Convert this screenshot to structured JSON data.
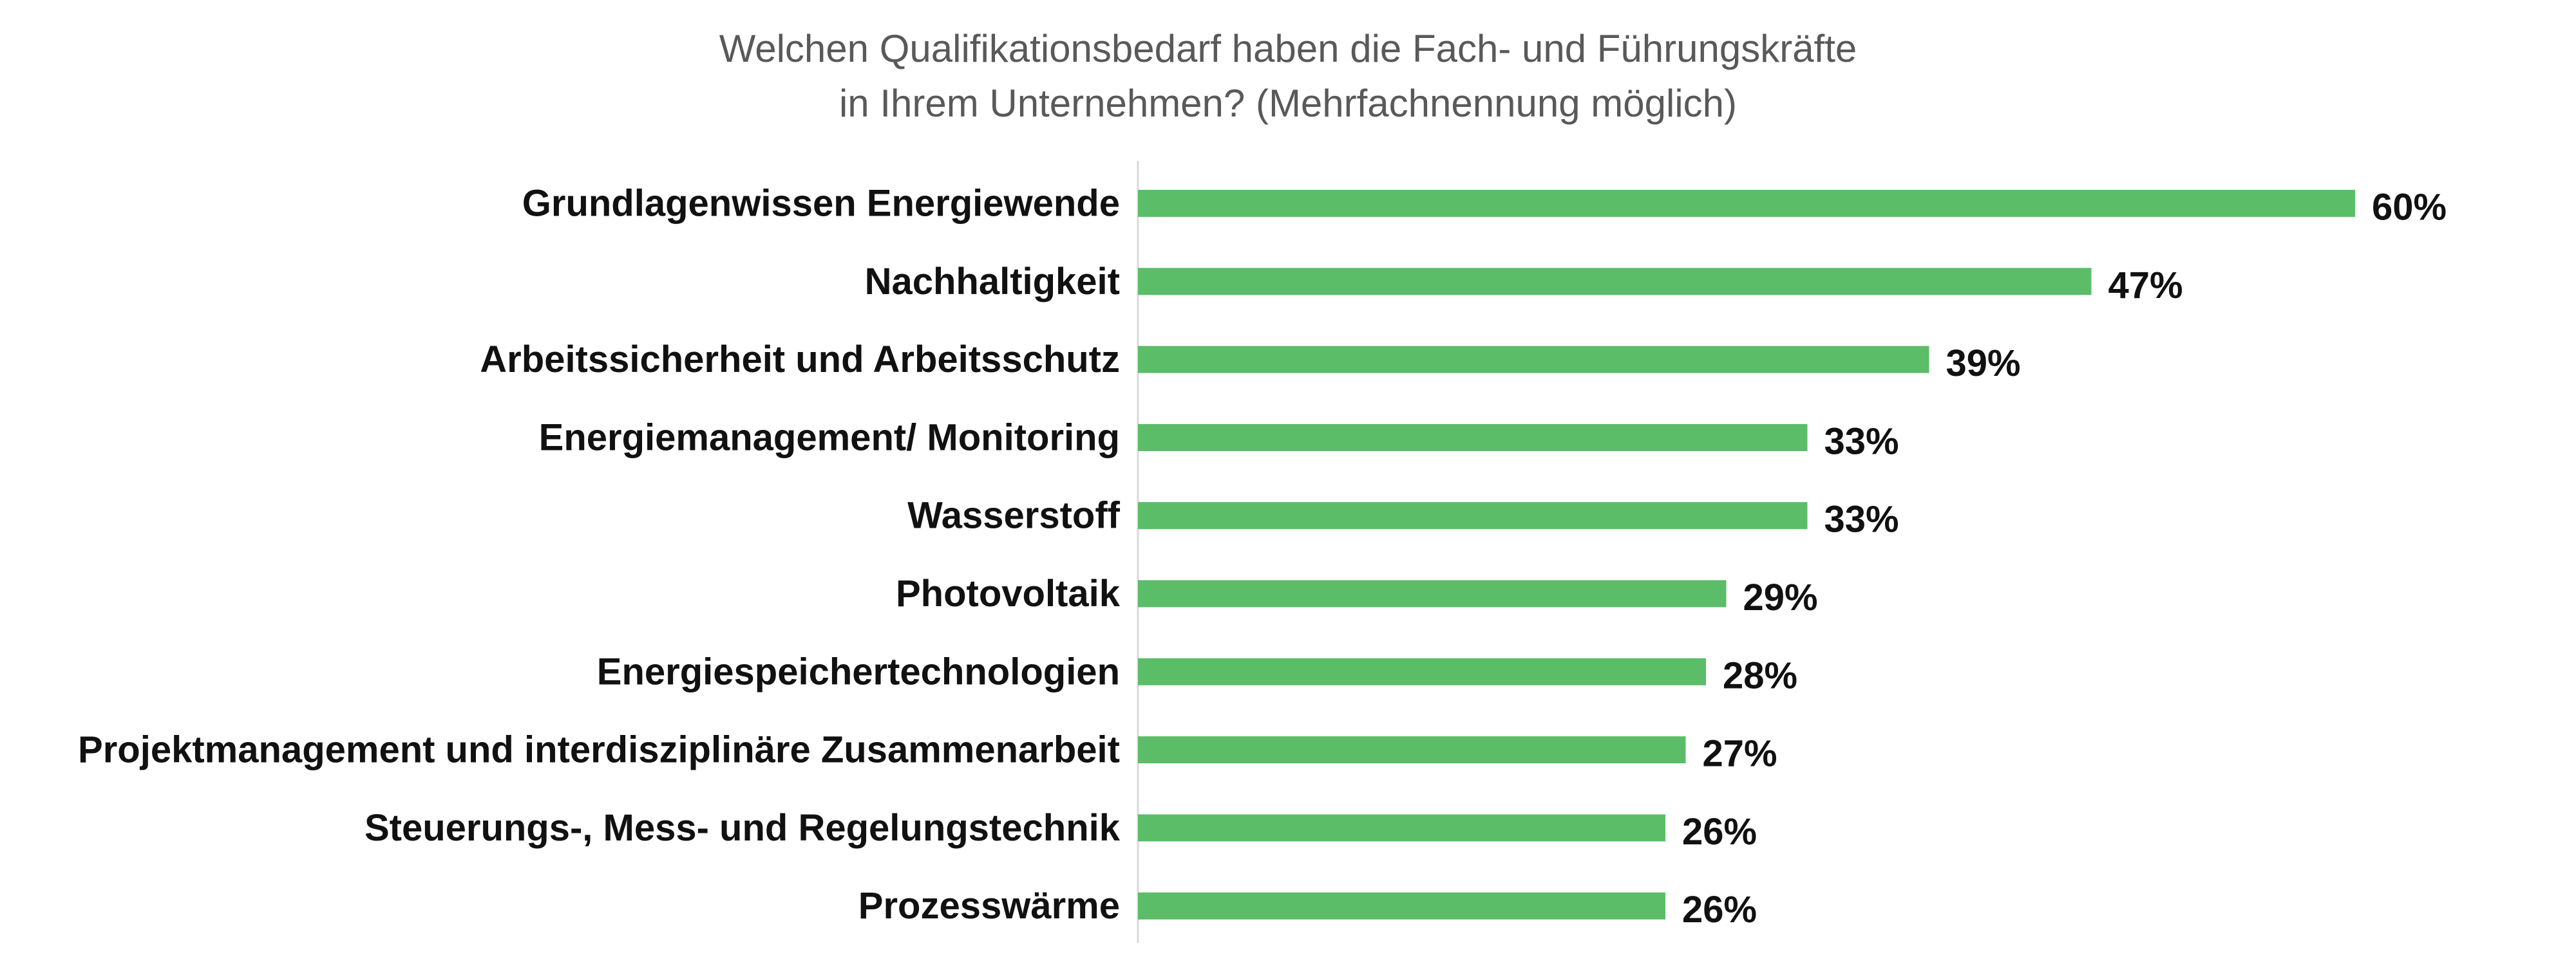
{
  "chart_data": {
    "type": "bar",
    "orientation": "horizontal",
    "title_lines": [
      "Welchen Qualifikationsbedarf haben die Fach- und Führungskräfte",
      "in Ihrem Unternehmen? (Mehrfachnennung möglich)"
    ],
    "categories": [
      "Grundlagenwissen Energiewende",
      "Nachhaltigkeit",
      "Arbeitssicherheit und Arbeitsschutz",
      "Energiemanagement/ Monitoring",
      "Wasserstoff",
      "Photovoltaik",
      "Energiespeichertechnologien",
      "Projektmanagement und interdisziplinäre Zusammenarbeit",
      "Steuerungs-, Mess- und Regelungstechnik",
      "Prozesswärme"
    ],
    "values": [
      60,
      47,
      39,
      33,
      33,
      29,
      28,
      27,
      26,
      26
    ],
    "value_labels": [
      "60%",
      "47%",
      "39%",
      "33%",
      "33%",
      "29%",
      "28%",
      "27%",
      "26%",
      "26%"
    ],
    "xlim": [
      0,
      100
    ],
    "grid": false,
    "legend": "none",
    "bar_color": "#5BBD68",
    "axis_color": "#D9D9D9"
  }
}
